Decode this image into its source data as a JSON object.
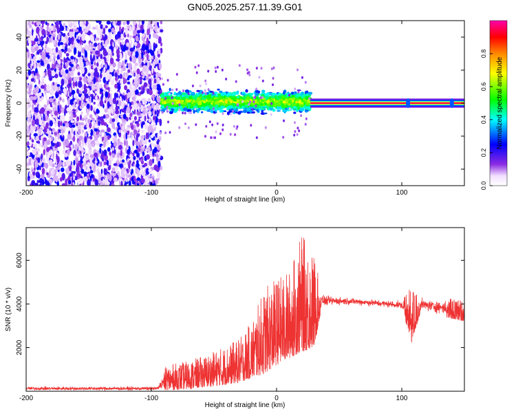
{
  "title": "GN05.2025.257.11.39.G01",
  "chart_data": [
    {
      "type": "heatmap",
      "title": "GN05.2025.257.11.39.G01",
      "xlabel": "Height of straight line (km)",
      "ylabel": "Frequency (Hz)",
      "xlim": [
        -200,
        150
      ],
      "ylim": [
        -50,
        50
      ],
      "x_ticks": [
        -200,
        -100,
        0,
        100
      ],
      "y_ticks": [
        -40,
        -20,
        0,
        20,
        40
      ],
      "colorbar": {
        "label": "Normalized spectral amplitude",
        "range": [
          0.0,
          1.0
        ],
        "ticks": [
          0.0,
          0.2,
          0.4,
          0.6,
          0.8
        ]
      },
      "regions": [
        {
          "x_range": [
            -200,
            -92
          ],
          "description_value": "scattered low amplitude across all frequencies",
          "amplitude": 0.15
        },
        {
          "x_range": [
            -92,
            27
          ],
          "center_freq": 1,
          "spread_hz": 8,
          "amplitude": 0.45
        },
        {
          "x_range": [
            27,
            150
          ],
          "center_freq": 0,
          "spread_hz": 2,
          "amplitude": 0.95
        }
      ]
    },
    {
      "type": "line",
      "xlabel": "Height of straight line (km)",
      "ylabel": "SNR (10 * v/v)",
      "xlim": [
        -200,
        150
      ],
      "ylim": [
        0,
        7500
      ],
      "x_ticks": [
        -200,
        -100,
        0,
        100
      ],
      "y_ticks": [
        2000,
        4000,
        6000
      ],
      "series": [
        {
          "name": "SNR",
          "color": "#ee3333",
          "envelope": [
            {
              "x": -200,
              "low": 0,
              "high": 250
            },
            {
              "x": -95,
              "low": 0,
              "high": 250
            },
            {
              "x": -88,
              "low": 50,
              "high": 1200
            },
            {
              "x": -70,
              "low": 100,
              "high": 1400
            },
            {
              "x": -55,
              "low": 200,
              "high": 1700
            },
            {
              "x": -40,
              "low": 300,
              "high": 2100
            },
            {
              "x": -30,
              "low": 400,
              "high": 2400
            },
            {
              "x": -20,
              "low": 600,
              "high": 3200
            },
            {
              "x": -10,
              "low": 800,
              "high": 4700
            },
            {
              "x": 0,
              "low": 1200,
              "high": 5200
            },
            {
              "x": 10,
              "low": 1500,
              "high": 5500
            },
            {
              "x": 20,
              "low": 1800,
              "high": 7200
            },
            {
              "x": 30,
              "low": 2000,
              "high": 6300
            },
            {
              "x": 36,
              "low": 3800,
              "high": 4500
            },
            {
              "x": 60,
              "low": 3900,
              "high": 4350
            },
            {
              "x": 100,
              "low": 3700,
              "high": 4200
            },
            {
              "x": 108,
              "low": 2200,
              "high": 4800
            },
            {
              "x": 115,
              "low": 3600,
              "high": 4350
            },
            {
              "x": 150,
              "low": 3200,
              "high": 4200
            }
          ]
        }
      ]
    }
  ]
}
